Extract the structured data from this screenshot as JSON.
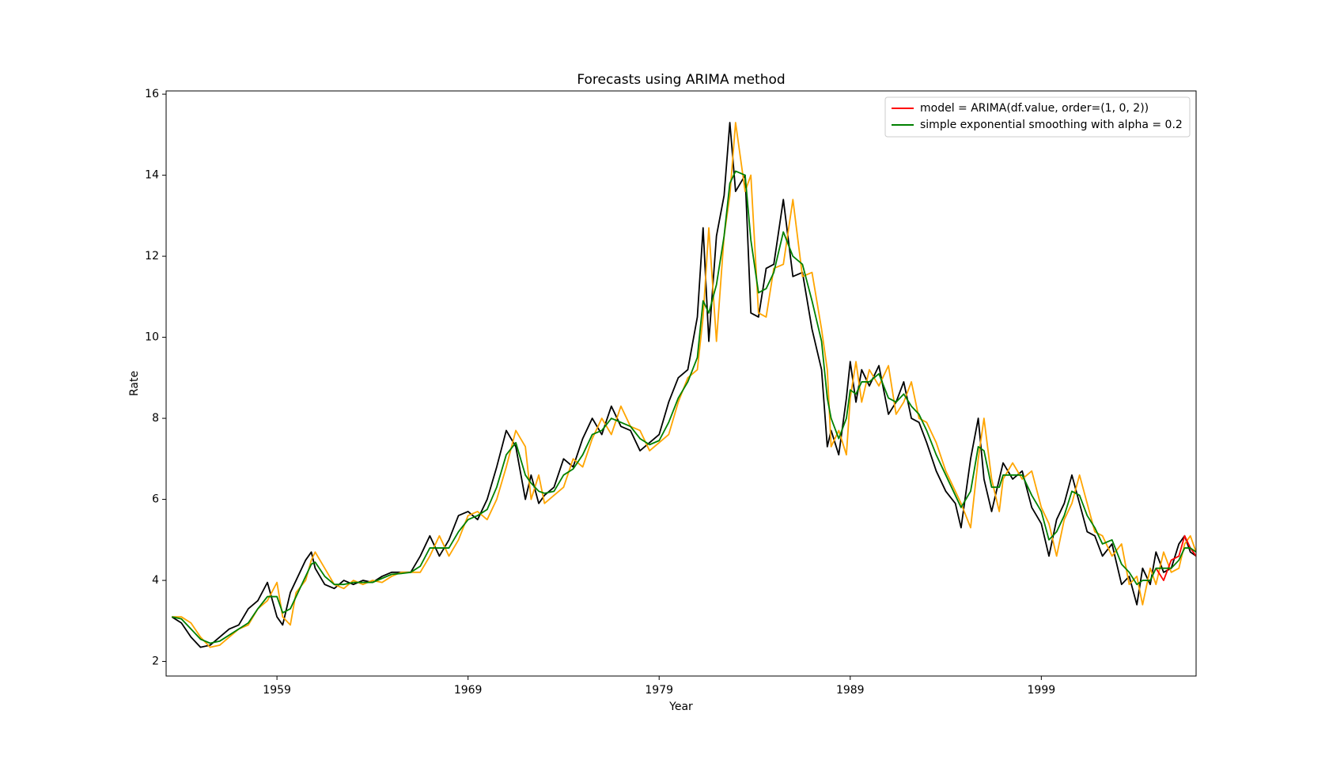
{
  "chart_data": {
    "type": "line",
    "title": "Forecasts using ARIMA method",
    "x_label": "Year",
    "y_label": "Rate",
    "xlim": [
      1953.2,
      2007.1
    ],
    "xticks": [
      1959,
      1969,
      1979,
      1989,
      1999
    ],
    "ylim": [
      1.64,
      16.08
    ],
    "yticks": [
      2,
      4,
      6,
      8,
      10,
      12,
      14,
      16
    ],
    "grid": false,
    "legend": "upper right",
    "x": [
      1953.5,
      1954,
      1954.5,
      1955,
      1955.5,
      1956,
      1956.5,
      1957,
      1957.5,
      1958,
      1958.5,
      1959,
      1959.3,
      1959.7,
      1960,
      1960.5,
      1960.8,
      1961,
      1961.5,
      1962,
      1962.5,
      1963,
      1963.5,
      1964,
      1964.5,
      1965,
      1965.5,
      1966,
      1966.5,
      1967,
      1967.5,
      1968,
      1968.5,
      1969,
      1969.5,
      1970,
      1970.5,
      1971,
      1971.5,
      1972,
      1972.3,
      1972.7,
      1973,
      1973.5,
      1974,
      1974.5,
      1975,
      1975.5,
      1976,
      1976.5,
      1977,
      1977.5,
      1978,
      1978.5,
      1979,
      1979.5,
      1980,
      1980.5,
      1981,
      1981.3,
      1981.6,
      1982,
      1982.4,
      1982.7,
      1983,
      1983.5,
      1983.8,
      1984.2,
      1984.6,
      1985,
      1985.5,
      1986,
      1986.5,
      1987,
      1987.5,
      1987.8,
      1988,
      1988.4,
      1988.8,
      1989,
      1989.3,
      1989.6,
      1990,
      1990.5,
      1991,
      1991.4,
      1991.8,
      1992.2,
      1992.6,
      1993,
      1993.5,
      1994,
      1994.5,
      1994.8,
      1995.3,
      1995.7,
      1996,
      1996.4,
      1996.8,
      1997,
      1997.5,
      1998,
      1998.5,
      1999,
      1999.4,
      1999.8,
      2000.2,
      2000.6,
      2001,
      2001.4,
      2001.8,
      2002.2,
      2002.7,
      2003.2,
      2003.6,
      2004,
      2004.3,
      2004.7,
      2005,
      2005.4,
      2005.8,
      2006.2,
      2006.5,
      2006.8,
      2007.1
    ],
    "series": [
      {
        "color": "#000000",
        "values": [
          3.1,
          2.95,
          2.6,
          2.35,
          2.4,
          2.6,
          2.8,
          2.9,
          3.3,
          3.5,
          3.95,
          3.1,
          2.9,
          3.7,
          4.0,
          4.5,
          4.7,
          4.3,
          3.9,
          3.8,
          4.0,
          3.9,
          4.0,
          3.95,
          4.1,
          4.2,
          4.2,
          4.2,
          4.6,
          5.1,
          4.6,
          5.0,
          5.6,
          5.7,
          5.5,
          6.0,
          6.8,
          7.7,
          7.3,
          6.0,
          6.6,
          5.9,
          6.1,
          6.3,
          7.0,
          6.8,
          7.5,
          8.0,
          7.6,
          8.3,
          7.8,
          7.7,
          7.2,
          7.4,
          7.6,
          8.4,
          9.0,
          9.2,
          10.5,
          12.7,
          9.9,
          12.5,
          13.5,
          15.3,
          13.6,
          14.0,
          10.6,
          10.5,
          11.7,
          11.8,
          13.4,
          11.5,
          11.6,
          10.2,
          9.2,
          7.3,
          7.7,
          7.1,
          8.5,
          9.4,
          8.4,
          9.2,
          8.8,
          9.3,
          8.1,
          8.4,
          8.9,
          8.0,
          7.9,
          7.4,
          6.7,
          6.2,
          5.9,
          5.3,
          7.0,
          8.0,
          6.5,
          5.7,
          6.5,
          6.9,
          6.5,
          6.7,
          5.8,
          5.4,
          4.6,
          5.5,
          5.9,
          6.6,
          5.9,
          5.2,
          5.1,
          4.6,
          4.9,
          3.9,
          4.1,
          3.4,
          4.3,
          3.9,
          4.7,
          4.2,
          4.3,
          4.9,
          5.1,
          4.7,
          4.6
        ]
      },
      {
        "color": "#ffa500",
        "values": [
          3.1,
          3.1,
          2.95,
          2.6,
          2.35,
          2.4,
          2.6,
          2.8,
          2.9,
          3.3,
          3.5,
          3.95,
          3.1,
          2.9,
          3.7,
          4.0,
          4.5,
          4.7,
          4.3,
          3.9,
          3.8,
          4.0,
          3.9,
          4.0,
          3.95,
          4.1,
          4.2,
          4.2,
          4.2,
          4.6,
          5.1,
          4.6,
          5.0,
          5.6,
          5.7,
          5.5,
          6.0,
          6.8,
          7.7,
          7.3,
          6.0,
          6.6,
          5.9,
          6.1,
          6.3,
          7.0,
          6.8,
          7.5,
          8.0,
          7.6,
          8.3,
          7.8,
          7.7,
          7.2,
          7.4,
          7.6,
          8.4,
          9.0,
          9.2,
          10.5,
          12.7,
          9.9,
          12.5,
          13.5,
          15.3,
          13.6,
          14.0,
          10.6,
          10.5,
          11.7,
          11.8,
          13.4,
          11.5,
          11.6,
          10.2,
          9.2,
          7.3,
          7.7,
          7.1,
          8.5,
          9.4,
          8.4,
          9.2,
          8.8,
          9.3,
          8.1,
          8.4,
          8.9,
          8.0,
          7.9,
          7.4,
          6.7,
          6.2,
          5.9,
          5.3,
          7.0,
          8.0,
          6.5,
          5.7,
          6.5,
          6.9,
          6.5,
          6.7,
          5.8,
          5.4,
          4.6,
          5.5,
          5.9,
          6.6,
          5.9,
          5.2,
          5.1,
          4.6,
          4.9,
          3.9,
          4.1,
          3.4,
          4.3,
          3.9,
          4.7,
          4.2,
          4.3,
          4.9,
          5.1,
          4.7
        ]
      },
      {
        "name": "model = ARIMA(df.value, order=(1, 0, 2))",
        "color": "#ff0000",
        "x": [
          2005,
          2005.4,
          2005.8,
          2006.2,
          2006.5,
          2006.8,
          2007.1
        ],
        "values": [
          4.3,
          4.0,
          4.5,
          4.6,
          5.1,
          4.8,
          4.6
        ]
      },
      {
        "name": "simple exponential smoothing with alpha = 0.2",
        "color": "#008000",
        "values": [
          3.1,
          3.05,
          2.8,
          2.55,
          2.45,
          2.5,
          2.65,
          2.8,
          2.95,
          3.3,
          3.6,
          3.6,
          3.2,
          3.3,
          3.6,
          4.1,
          4.4,
          4.45,
          4.1,
          3.9,
          3.9,
          3.95,
          3.95,
          3.95,
          4.05,
          4.15,
          4.17,
          4.2,
          4.35,
          4.8,
          4.8,
          4.8,
          5.2,
          5.5,
          5.6,
          5.75,
          6.3,
          7.1,
          7.4,
          6.6,
          6.4,
          6.2,
          6.15,
          6.2,
          6.6,
          6.75,
          7.1,
          7.6,
          7.7,
          8.0,
          7.9,
          7.8,
          7.5,
          7.35,
          7.45,
          7.9,
          8.5,
          8.9,
          9.5,
          10.9,
          10.6,
          11.3,
          12.5,
          13.8,
          14.1,
          14.0,
          12.4,
          11.1,
          11.2,
          11.6,
          12.6,
          12.0,
          11.8,
          10.9,
          9.9,
          8.5,
          8.0,
          7.5,
          8.0,
          8.7,
          8.6,
          8.9,
          8.9,
          9.1,
          8.5,
          8.4,
          8.6,
          8.3,
          8.1,
          7.7,
          7.1,
          6.6,
          6.1,
          5.8,
          6.2,
          7.3,
          7.2,
          6.3,
          6.3,
          6.6,
          6.6,
          6.6,
          6.1,
          5.7,
          5.0,
          5.2,
          5.6,
          6.2,
          6.1,
          5.6,
          5.3,
          4.9,
          5.0,
          4.4,
          4.2,
          3.9,
          4.0,
          4.0,
          4.3,
          4.3,
          4.3,
          4.5,
          4.8,
          4.8,
          4.7
        ]
      }
    ]
  }
}
